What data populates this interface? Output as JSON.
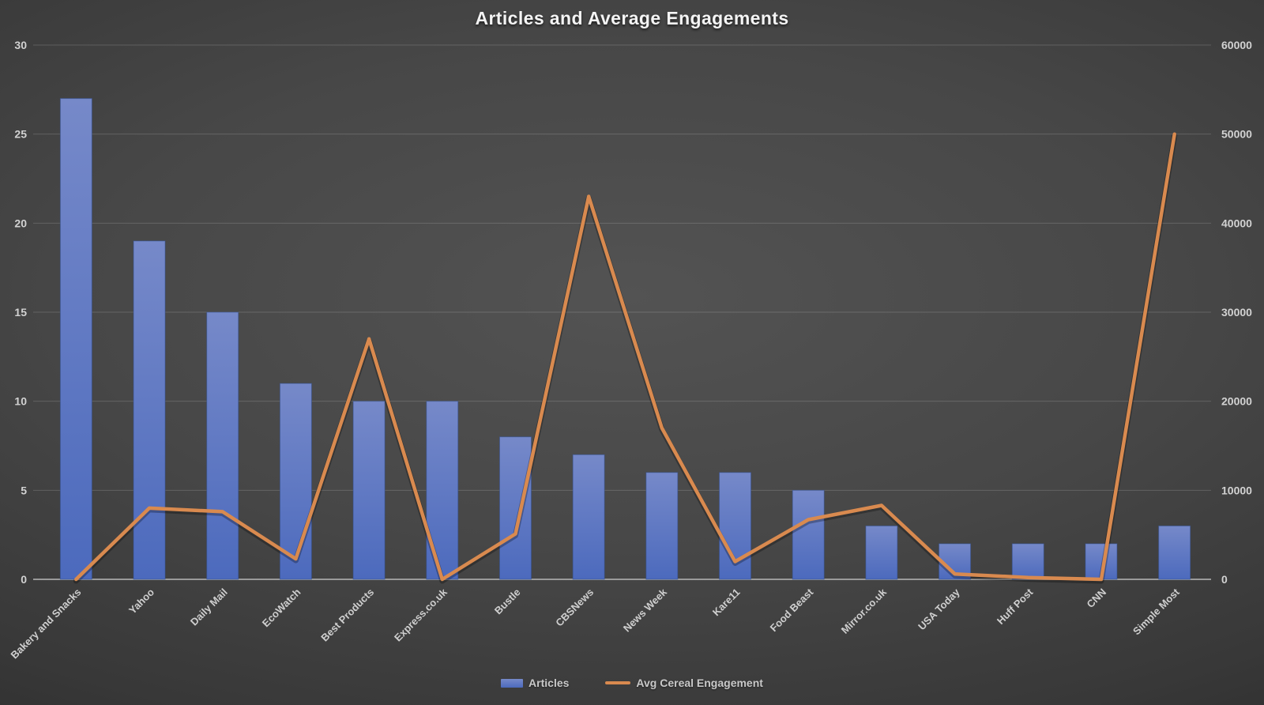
{
  "title": "Articles and Average Engagements",
  "legend": {
    "items": [
      {
        "label": "Articles",
        "type": "bar"
      },
      {
        "label": "Avg Cereal Engagement",
        "type": "line"
      }
    ]
  },
  "colors": {
    "bar_gradient_top": "#7689c9",
    "bar_gradient_bottom": "#4c6abd",
    "bar_border": "#33508f",
    "line": "#d98a4f",
    "line_shadow": "rgba(0,0,0,0.28)",
    "grid": "rgba(255,255,255,0.16)",
    "axis_line": "#9a9a9a",
    "tick_label": "#d2d2d2",
    "category_label": "#cfcfcf"
  },
  "chart_data": {
    "type": "combo",
    "categories": [
      "Bakery and Snacks",
      "Yahoo",
      "Daily Mail",
      "EcoWatch",
      "Best Products",
      "Express.co.uk",
      "Bustle",
      "CBSNews",
      "News Week",
      "Kare11",
      "Food Beast",
      "Mirror.co.uk",
      "USA Today",
      "Huff Post",
      "CNN",
      "Simple Most"
    ],
    "series": [
      {
        "name": "Articles",
        "type": "bar",
        "axis": "left",
        "values": [
          27,
          19,
          15,
          11,
          10,
          10,
          8,
          7,
          6,
          6,
          5,
          3,
          2,
          2,
          2,
          3
        ]
      },
      {
        "name": "Avg Cereal Engagement",
        "type": "line",
        "axis": "right",
        "values": [
          0,
          8000,
          7600,
          2300,
          27000,
          0,
          5100,
          43000,
          17000,
          2000,
          6700,
          8300,
          600,
          200,
          0,
          50000
        ]
      }
    ],
    "left_axis": {
      "min": 0,
      "max": 30,
      "step": 5,
      "ticks": [
        "0",
        "5",
        "10",
        "15",
        "20",
        "25",
        "30"
      ]
    },
    "right_axis": {
      "min": 0,
      "max": 60000,
      "step": 10000,
      "ticks": [
        "0",
        "10000",
        "20000",
        "30000",
        "40000",
        "50000",
        "60000"
      ]
    },
    "grid": true,
    "legend_position": "bottom",
    "title": "Articles and Average Engagements",
    "xlabel": "",
    "ylabel_left": "",
    "ylabel_right": ""
  }
}
